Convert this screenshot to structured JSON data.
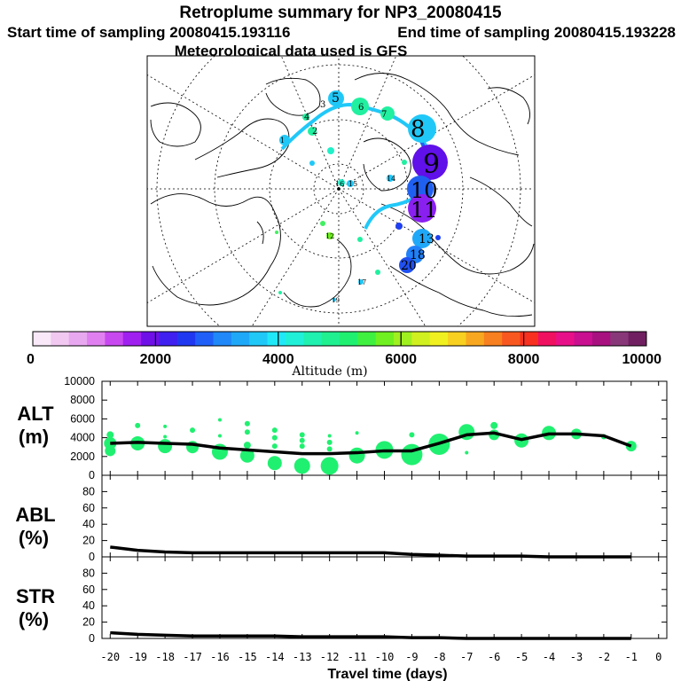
{
  "header": {
    "title": "Retroplume summary for NP3_20080415",
    "start": "Start time of sampling 20080415.193116",
    "end": "End time of sampling 20080415.193228",
    "met": "Meteorological data used is GFS"
  },
  "colorbar": {
    "ticks": [
      "0",
      "2000",
      "4000",
      "6000",
      "8000",
      "10000"
    ],
    "label": "Altitude (m)",
    "colors": [
      "#f8e8f8",
      "#f0c8f0",
      "#e8a8f0",
      "#e080f0",
      "#c848f0",
      "#a020f0",
      "#7010e8",
      "#4020f0",
      "#2038f0",
      "#2060f8",
      "#2088f8",
      "#20a8f8",
      "#20c8f8",
      "#20e8f8",
      "#20f0d8",
      "#20f0b0",
      "#20f090",
      "#20f070",
      "#40f040",
      "#70f020",
      "#a0f020",
      "#d0f020",
      "#f0f020",
      "#f8d020",
      "#f8a820",
      "#f88020",
      "#f85820",
      "#f83020",
      "#f01060",
      "#e81088",
      "#c81090",
      "#a81080",
      "#883878",
      "#702060"
    ]
  },
  "map": {
    "labels": [
      "5",
      "8",
      "9",
      "10",
      "11",
      "13",
      "18",
      "20",
      "4",
      "3",
      "6",
      "7",
      "2",
      "16",
      "15",
      "14",
      "17",
      "19",
      "12",
      "1"
    ]
  },
  "chart_data": {
    "type": "line",
    "xlabel": "Travel time (days)",
    "x_ticks": [
      "-20",
      "-19",
      "-18",
      "-17",
      "-16",
      "-15",
      "-14",
      "-13",
      "-12",
      "-11",
      "-10",
      "-9",
      "-8",
      "-7",
      "-6",
      "-5",
      "-4",
      "-3",
      "-2",
      "-1",
      "0"
    ],
    "panels": [
      {
        "name": "ALT",
        "unit": "(m)",
        "ylim": [
          0,
          10000
        ],
        "y_ticks": [
          "0",
          "2000",
          "4000",
          "6000",
          "8000",
          "10000"
        ],
        "line": {
          "x": [
            -20,
            -19,
            -18,
            -17,
            -16,
            -15,
            -14,
            -13,
            -12,
            -11,
            -10,
            -9,
            -8,
            -7,
            -6,
            -5,
            -4,
            -3,
            -2,
            -1
          ],
          "y": [
            3400,
            3500,
            3400,
            3300,
            2900,
            2700,
            2500,
            2300,
            2300,
            2400,
            2600,
            2600,
            3400,
            4300,
            4500,
            3800,
            4400,
            4400,
            4200,
            3100
          ]
        },
        "dots": [
          {
            "x": -20,
            "y": 4300,
            "s": 4
          },
          {
            "x": -20,
            "y": 3400,
            "s": 7
          },
          {
            "x": -20,
            "y": 2600,
            "s": 6
          },
          {
            "x": -19,
            "y": 5300,
            "s": 3
          },
          {
            "x": -19,
            "y": 3400,
            "s": 8
          },
          {
            "x": -18,
            "y": 5200,
            "s": 2
          },
          {
            "x": -18,
            "y": 4100,
            "s": 2
          },
          {
            "x": -18,
            "y": 3100,
            "s": 8
          },
          {
            "x": -17,
            "y": 4800,
            "s": 3
          },
          {
            "x": -17,
            "y": 3000,
            "s": 7
          },
          {
            "x": -16,
            "y": 5900,
            "s": 2
          },
          {
            "x": -16,
            "y": 4200,
            "s": 2
          },
          {
            "x": -16,
            "y": 2500,
            "s": 9
          },
          {
            "x": -15,
            "y": 5500,
            "s": 3
          },
          {
            "x": -15,
            "y": 4600,
            "s": 3
          },
          {
            "x": -15,
            "y": 3200,
            "s": 4
          },
          {
            "x": -15,
            "y": 2100,
            "s": 8
          },
          {
            "x": -14,
            "y": 4800,
            "s": 3
          },
          {
            "x": -14,
            "y": 4000,
            "s": 3
          },
          {
            "x": -14,
            "y": 3100,
            "s": 3
          },
          {
            "x": -14,
            "y": 1300,
            "s": 8
          },
          {
            "x": -13,
            "y": 4300,
            "s": 3
          },
          {
            "x": -13,
            "y": 3700,
            "s": 3
          },
          {
            "x": -13,
            "y": 3100,
            "s": 3
          },
          {
            "x": -13,
            "y": 1000,
            "s": 9
          },
          {
            "x": -12,
            "y": 4200,
            "s": 2
          },
          {
            "x": -12,
            "y": 3500,
            "s": 3
          },
          {
            "x": -12,
            "y": 2800,
            "s": 3
          },
          {
            "x": -12,
            "y": 1000,
            "s": 10
          },
          {
            "x": -11,
            "y": 4500,
            "s": 2
          },
          {
            "x": -11,
            "y": 2100,
            "s": 9
          },
          {
            "x": -10,
            "y": 2700,
            "s": 10
          },
          {
            "x": -9,
            "y": 4300,
            "s": 3
          },
          {
            "x": -9,
            "y": 2200,
            "s": 12
          },
          {
            "x": -8,
            "y": 3300,
            "s": 12
          },
          {
            "x": -7,
            "y": 4600,
            "s": 9
          },
          {
            "x": -7,
            "y": 2400,
            "s": 2
          },
          {
            "x": -6,
            "y": 5300,
            "s": 4
          },
          {
            "x": -6,
            "y": 4300,
            "s": 6
          },
          {
            "x": -5,
            "y": 3700,
            "s": 8
          },
          {
            "x": -4,
            "y": 4500,
            "s": 8
          },
          {
            "x": -3,
            "y": 4400,
            "s": 6
          },
          {
            "x": -2,
            "y": 4100,
            "s": 3
          },
          {
            "x": -1,
            "y": 3100,
            "s": 6
          }
        ]
      },
      {
        "name": "ABL",
        "unit": "(%)",
        "ylim": [
          0,
          100
        ],
        "y_ticks": [
          "0",
          "20",
          "40",
          "60",
          "80"
        ],
        "line": {
          "x": [
            -20,
            -19,
            -18,
            -17,
            -16,
            -15,
            -14,
            -13,
            -12,
            -11,
            -10,
            -9,
            -8,
            -7,
            -6,
            -5,
            -4,
            -3,
            -2,
            -1
          ],
          "y": [
            12,
            8,
            6,
            5,
            5,
            5,
            5,
            5,
            5,
            5,
            5,
            3,
            2,
            1,
            1,
            1,
            0,
            0,
            0,
            0
          ]
        },
        "dots": []
      },
      {
        "name": "STR",
        "unit": "(%)",
        "ylim": [
          0,
          100
        ],
        "y_ticks": [
          "0",
          "20",
          "40",
          "60",
          "80"
        ],
        "line": {
          "x": [
            -20,
            -19,
            -18,
            -17,
            -16,
            -15,
            -14,
            -13,
            -12,
            -11,
            -10,
            -9,
            -8,
            -7,
            -6,
            -5,
            -4,
            -3,
            -2,
            -1
          ],
          "y": [
            7,
            5,
            4,
            3,
            3,
            3,
            3,
            2,
            2,
            2,
            2,
            1,
            1,
            0,
            0,
            0,
            0,
            0,
            0,
            0
          ]
        },
        "dots": []
      }
    ]
  }
}
